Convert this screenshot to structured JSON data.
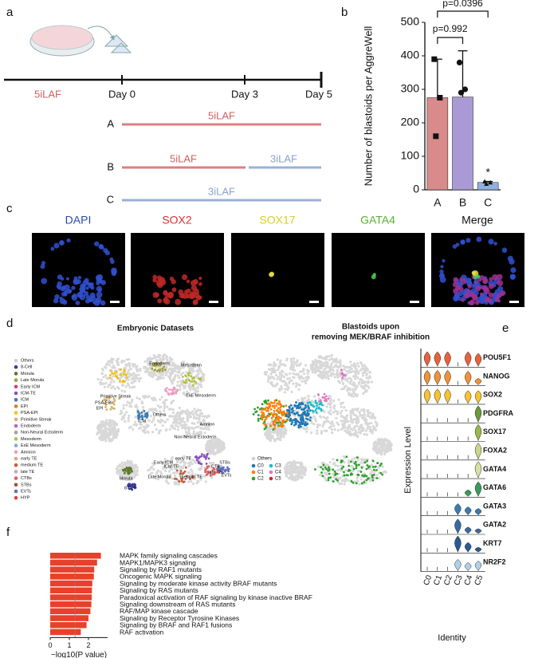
{
  "panel_labels": [
    "a",
    "b",
    "c",
    "d",
    "e",
    "f"
  ],
  "timeline": {
    "condition": "5iLAF",
    "days": [
      "Day 0",
      "Day 3",
      "Day 5"
    ],
    "arms": [
      {
        "label": "A",
        "segments": [
          "5iLAF"
        ]
      },
      {
        "label": "B",
        "segments": [
          "5iLAF",
          "3iLAF"
        ]
      },
      {
        "label": "C",
        "segments": [
          "3iLAF"
        ]
      }
    ]
  },
  "images": {
    "channels": [
      {
        "name": "DAPI",
        "color": "#2a4aa8"
      },
      {
        "name": "SOX2",
        "color": "#d83030"
      },
      {
        "name": "SOX17",
        "color": "#d8d020"
      },
      {
        "name": "GATA4",
        "color": "#58b030"
      },
      {
        "name": "Merge",
        "color": "#111111"
      }
    ]
  },
  "umap": {
    "left_title": "Embryonic Datasets",
    "right_title": [
      "Blastoids upon",
      "removing MEK/BRAF inhibition"
    ],
    "left_legend": [
      {
        "name": "Others",
        "color": "#d0d0d0"
      },
      {
        "name": "8-Cell",
        "color": "#3a3aa0"
      },
      {
        "name": "Morula",
        "color": "#5a7a2a"
      },
      {
        "name": "Late Morula",
        "color": "#a0a040"
      },
      {
        "name": "Early ICM",
        "color": "#d04070"
      },
      {
        "name": "ICM-TE",
        "color": "#8a50c0"
      },
      {
        "name": "ICM",
        "color": "#3a7ab0"
      },
      {
        "name": "EPI",
        "color": "#e07a20"
      },
      {
        "name": "PSA-EPI",
        "color": "#f0c020"
      },
      {
        "name": "Primitive Streak",
        "color": "#d8b070"
      },
      {
        "name": "Endoderm",
        "color": "#c060c0"
      },
      {
        "name": "Non-Neural Ectoderm",
        "color": "#a0a0a0"
      },
      {
        "name": "Mesoderm",
        "color": "#b0c040"
      },
      {
        "name": "ExE Mesoderm",
        "color": "#7ab0d0"
      },
      {
        "name": "Amnion",
        "color": "#f09ac0"
      },
      {
        "name": "early TE",
        "color": "#e8a080"
      },
      {
        "name": "medium TE",
        "color": "#c06040"
      },
      {
        "name": "late TE",
        "color": "#d0a0c0"
      },
      {
        "name": "CTBs",
        "color": "#e06060"
      },
      {
        "name": "STBs",
        "color": "#a05030"
      },
      {
        "name": "EVTs",
        "color": "#6070c0"
      },
      {
        "name": "HYP",
        "color": "#e04040"
      }
    ],
    "left_annotations": [
      "Endoderm",
      "Mesoderm",
      "ExE Mesoderm",
      "Primitive Streak",
      "PSA-EPI",
      "EPI",
      "ICM",
      "Others",
      "Amnion",
      "Non-Neural Ectoderm",
      "early TE",
      "Early ICM",
      "ICM-TE",
      "Late Morula",
      "medium TE",
      "Morula",
      "8-Cell",
      "STBs",
      "CTBs",
      "late TE",
      "EVTs"
    ],
    "right_legend": [
      {
        "name": "Others",
        "color": "#d0d0d0"
      },
      {
        "name": "C0",
        "color": "#1f77b4"
      },
      {
        "name": "C1",
        "color": "#ff7f0e"
      },
      {
        "name": "C2",
        "color": "#2ca02c"
      },
      {
        "name": "C3",
        "color": "#17becf"
      },
      {
        "name": "C4",
        "color": "#e377c2"
      },
      {
        "name": "C5",
        "color": "#d62728"
      }
    ]
  },
  "chart_data": [
    {
      "type": "bar",
      "ylabel": "Number of blastoids per AggreWell",
      "categories": [
        "A",
        "B",
        "C"
      ],
      "values": [
        275,
        277,
        22
      ],
      "errors": [
        115,
        138,
        3
      ],
      "colors": [
        "#d98a8a",
        "#a99ad6",
        "#8fb0e0"
      ],
      "points": [
        [
          390,
          275,
          160
        ],
        [
          380,
          300,
          290
        ],
        [
          25,
          22,
          18
        ]
      ],
      "ylim": [
        0,
        500
      ],
      "yticks": [
        0,
        100,
        200,
        300,
        400,
        500
      ],
      "annotations": [
        "p=0.992",
        "p=0.0396",
        "*"
      ]
    },
    {
      "type": "violin",
      "ylabel": "Expression Level",
      "xlabel": "Identity",
      "categories": [
        "C0",
        "C1",
        "C2",
        "C3",
        "C4",
        "C5"
      ],
      "ylim": [
        0,
        1
      ],
      "series": [
        {
          "name": "POU5F1",
          "color": "#e8623a",
          "values": [
            0.9,
            0.9,
            0.9,
            0,
            0.9,
            0.8
          ]
        },
        {
          "name": "NANOG",
          "color": "#f0913a",
          "values": [
            0.9,
            0.9,
            0.9,
            0,
            0.85,
            0.4
          ]
        },
        {
          "name": "SOX2",
          "color": "#f5c232",
          "values": [
            0.9,
            0.9,
            0.9,
            0,
            0.8,
            0.8
          ]
        },
        {
          "name": "PDGFRA",
          "color": "#6a9a3a",
          "values": [
            0,
            0,
            0,
            0,
            0,
            1
          ]
        },
        {
          "name": "SOX17",
          "color": "#9ab84a",
          "values": [
            0,
            0,
            0,
            0,
            0,
            1
          ]
        },
        {
          "name": "FOXA2",
          "color": "#c8d68a",
          "values": [
            0,
            0,
            0,
            0,
            0,
            1
          ]
        },
        {
          "name": "GATA4",
          "color": "#d8e0a0",
          "values": [
            0,
            0,
            0,
            0,
            0,
            1
          ]
        },
        {
          "name": "GATA6",
          "color": "#3a9a5a",
          "values": [
            0,
            0,
            0,
            0,
            0.4,
            0.9
          ]
        },
        {
          "name": "GATA3",
          "color": "#3a7ab0",
          "values": [
            0,
            0,
            0,
            0.7,
            0.5,
            0.4
          ]
        },
        {
          "name": "GATA2",
          "color": "#3a6aa0",
          "values": [
            0,
            0,
            0,
            0.9,
            0.4,
            0.3
          ]
        },
        {
          "name": "KRT7",
          "color": "#2a5a90",
          "values": [
            0,
            0,
            0,
            1,
            0.6,
            0.3
          ]
        },
        {
          "name": "NR2F2",
          "color": "#b0d0e8",
          "values": [
            0,
            0,
            0,
            0.7,
            0.5,
            0.6
          ]
        }
      ]
    },
    {
      "type": "hbar",
      "xlabel": "−log10(P value)",
      "color": "#e8402a",
      "threshold": 1.3,
      "xlim": [
        0,
        3
      ],
      "xticks": [
        0,
        1,
        2
      ],
      "categories": [
        "MAPK family signaling cascades",
        "MAPK1/MAPK3 signaling",
        "Signaling by RAF1 mutants",
        "Oncogenic MAPK signaling",
        "Signaling by moderate kinase activity BRAF mutants",
        "Signaling by RAS mutants",
        "Paradoxical activation of RAF signaling by kinase inactive BRAF",
        "Signaling downstream of RAS mutants",
        "RAF/MAP kinase cascade",
        "Signaling by Receptor Tyrosine Kinases",
        "Signaling by BRAF and RAF1 fusions",
        "RAF activation"
      ],
      "values": [
        2.65,
        2.45,
        2.3,
        2.28,
        2.2,
        2.18,
        2.17,
        2.15,
        2.1,
        2.0,
        1.9,
        1.6
      ]
    }
  ]
}
